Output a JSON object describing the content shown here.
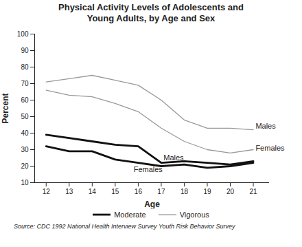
{
  "chart_data": {
    "type": "line",
    "title": "Physical Activity Levels of Adolescents and\nYoung Adults, by Age and Sex",
    "x_label": "Age",
    "y_label": "Percent",
    "source": "Source:  CDC 1992 National Health Interview Survey Youth Risk Behavior Survey",
    "x": [
      12,
      13,
      14,
      15,
      16,
      17,
      18,
      19,
      20,
      21
    ],
    "series": [
      {
        "name": "Males",
        "group": "Vigorous",
        "color": "#999999",
        "line_style": "thin",
        "values": [
          71,
          73,
          75,
          72,
          69,
          60,
          48,
          43,
          43,
          42
        ]
      },
      {
        "name": "Females",
        "group": "Vigorous",
        "color": "#999999",
        "line_style": "thin",
        "values": [
          66,
          63,
          62,
          58,
          53,
          43,
          35,
          30,
          28,
          30
        ]
      },
      {
        "name": "Males",
        "group": "Moderate",
        "color": "#111111",
        "line_style": "thick",
        "values": [
          39,
          37,
          35,
          33,
          32,
          22,
          23,
          22,
          21,
          23
        ]
      },
      {
        "name": "Females",
        "group": "Moderate",
        "color": "#111111",
        "line_style": "thick",
        "values": [
          32,
          29,
          29,
          24,
          22,
          20,
          21,
          19,
          20,
          22
        ]
      }
    ],
    "legend_entries": [
      "Moderate",
      "Vigorous"
    ],
    "legend": "bottom",
    "annotations": [
      {
        "text": "Males",
        "x": 21.1,
        "y": 44
      },
      {
        "text": "Females",
        "x": 21.1,
        "y": 31
      },
      {
        "text": "Males",
        "x": 17.1,
        "y": 25
      },
      {
        "text": "Females",
        "x": 15.8,
        "y": 18
      }
    ],
    "xlim": [
      11.5,
      21.7
    ],
    "xticks": [
      12,
      13,
      14,
      15,
      16,
      17,
      18,
      19,
      20,
      21
    ],
    "ylim": [
      10,
      100
    ],
    "yticks": [
      10,
      20,
      30,
      40,
      50,
      60,
      70,
      80,
      90,
      100
    ],
    "grid": false
  }
}
